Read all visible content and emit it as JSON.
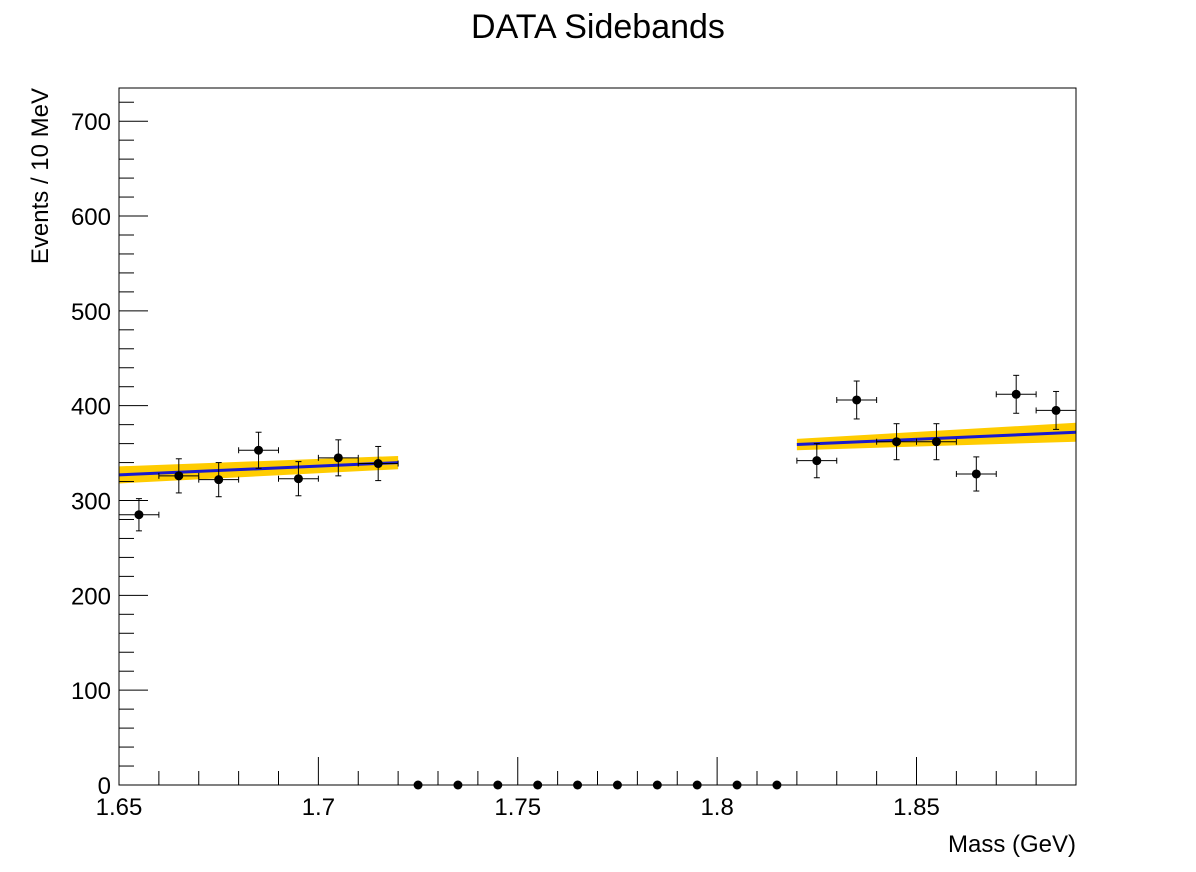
{
  "chart_data": {
    "type": "scatter",
    "title": "DATA Sidebands",
    "xlabel": "Mass (GeV)",
    "ylabel": "Events / 10 MeV",
    "xlim": [
      1.65,
      1.89
    ],
    "ylim": [
      0,
      735
    ],
    "grid": false,
    "x_ticks": [
      "1.65",
      "1.7",
      "1.75",
      "1.8",
      "1.85"
    ],
    "y_ticks": [
      "0",
      "100",
      "200",
      "300",
      "400",
      "500",
      "600",
      "700"
    ],
    "series": [
      {
        "kind": "data-points-with-errors",
        "color": "#000000",
        "x_halfwidth": 0.005,
        "points": [
          {
            "x": 1.655,
            "y": 285,
            "err": 17
          },
          {
            "x": 1.665,
            "y": 326,
            "err": 18
          },
          {
            "x": 1.675,
            "y": 322,
            "err": 18
          },
          {
            "x": 1.685,
            "y": 353,
            "err": 19
          },
          {
            "x": 1.695,
            "y": 323,
            "err": 18
          },
          {
            "x": 1.705,
            "y": 345,
            "err": 19
          },
          {
            "x": 1.715,
            "y": 339,
            "err": 18
          },
          {
            "x": 1.725,
            "y": 0,
            "err": 0
          },
          {
            "x": 1.735,
            "y": 0,
            "err": 0
          },
          {
            "x": 1.745,
            "y": 0,
            "err": 0
          },
          {
            "x": 1.755,
            "y": 0,
            "err": 0
          },
          {
            "x": 1.765,
            "y": 0,
            "err": 0
          },
          {
            "x": 1.775,
            "y": 0,
            "err": 0
          },
          {
            "x": 1.785,
            "y": 0,
            "err": 0
          },
          {
            "x": 1.795,
            "y": 0,
            "err": 0
          },
          {
            "x": 1.805,
            "y": 0,
            "err": 0
          },
          {
            "x": 1.815,
            "y": 0,
            "err": 0
          },
          {
            "x": 1.825,
            "y": 342,
            "err": 18
          },
          {
            "x": 1.835,
            "y": 406,
            "err": 20
          },
          {
            "x": 1.845,
            "y": 362,
            "err": 19
          },
          {
            "x": 1.855,
            "y": 362,
            "err": 19
          },
          {
            "x": 1.865,
            "y": 328,
            "err": 18
          },
          {
            "x": 1.875,
            "y": 412,
            "err": 20
          },
          {
            "x": 1.885,
            "y": 395,
            "err": 20
          }
        ]
      },
      {
        "kind": "fit-line",
        "color": "#1a1acc",
        "band_color": "#ffcc00",
        "segments": [
          {
            "x": [
              1.65,
              1.72
            ],
            "y": [
              327,
              340
            ],
            "band_halfwidth": [
              9,
              7
            ]
          },
          {
            "x": [
              1.82,
              1.89
            ],
            "y": [
              359,
              372
            ],
            "band_halfwidth": [
              6,
              10
            ]
          }
        ]
      }
    ]
  }
}
